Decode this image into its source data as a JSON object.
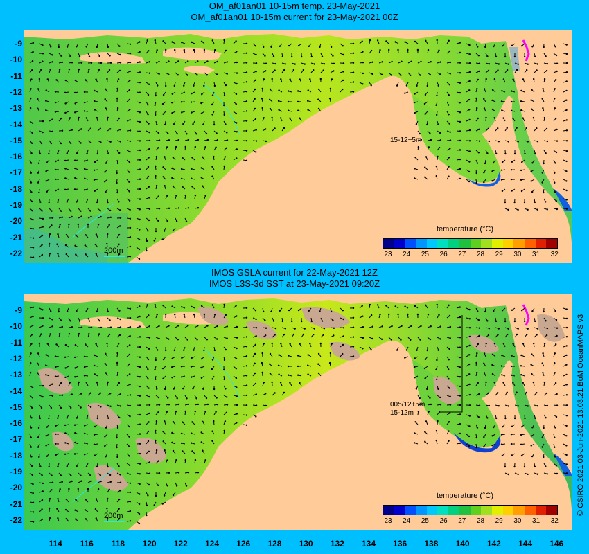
{
  "top_panel": {
    "title_line1": "OM_af01an01 10-15m temp. 23-May-2021",
    "title_line2": "OM_af01an01 10-15m current for 23-May-2021 00Z",
    "scale_label": "200m",
    "annotation": "15-12+5m"
  },
  "bottom_panel": {
    "title_line1": "IMOS GSLA current for 22-May-2021 12Z",
    "title_line2": "IMOS L3S-3d SST at 23-May-2021 09:20Z",
    "scale_label": "200m",
    "annotation1": "005/12+5m",
    "annotation2": "15-12m"
  },
  "colorbar": {
    "title": "temperature (°C)",
    "ticks": [
      "23",
      "24",
      "25",
      "26",
      "27",
      "28",
      "29",
      "30",
      "31",
      "32"
    ],
    "colors": [
      "#00008b",
      "#0000cd",
      "#0050ff",
      "#0096ff",
      "#00c8ff",
      "#00e0c0",
      "#00d080",
      "#20c040",
      "#60d020",
      "#a0e020",
      "#e0f000",
      "#ffd000",
      "#ffa000",
      "#ff6000",
      "#e02000",
      "#a00000"
    ]
  },
  "y_axis_labels": [
    "-9",
    "-10",
    "-11",
    "-12",
    "-13",
    "-14",
    "-15",
    "-16",
    "-17",
    "-18",
    "-19",
    "-20",
    "-21",
    "-22"
  ],
  "x_axis_labels": [
    "114",
    "116",
    "118",
    "120",
    "122",
    "124",
    "126",
    "128",
    "130",
    "132",
    "134",
    "136",
    "138",
    "140",
    "142",
    "144",
    "146"
  ],
  "credit": "© CSIRO 2021  03-Jun-2021 13:03:21 BoM OceanMAPS v3",
  "colors": {
    "background": "#00bfff",
    "land": "#ffcc99",
    "ocean_warm": "#b8e61e",
    "ocean_mid": "#6ed23c",
    "missing_data": "#c8a890",
    "scale_line": "#2ee6e6"
  }
}
